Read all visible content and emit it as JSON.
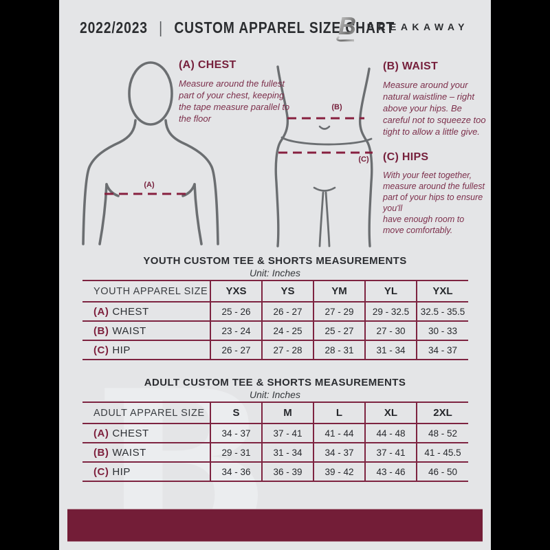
{
  "page": {
    "background": "#000000",
    "flyer_background": "#e4e5e7",
    "accent_maroon": "#731d37",
    "line_maroon": "#7d2340",
    "figure_gray": "#6b6e71"
  },
  "header": {
    "season": "2022/2023",
    "divider": "|",
    "title": "CUSTOM APPAREL SIZE CHART",
    "brand": "BREAKAWAY",
    "logo_icon": "breakaway-b-logo"
  },
  "measure_guide": {
    "chest": {
      "label": "(A) CHEST",
      "text": "Measure around the fullest part of your chest, keeping the tape measure parallel to the floor"
    },
    "waist": {
      "label": "(B) WAIST",
      "text": "Measure around your natural waistline – right above your hips. Be careful not to squeeze too tight to allow a little give."
    },
    "hips": {
      "label": "(C) HIPS",
      "text": "With your feet together, measure around the fullest part of your hips to ensure you'll\nhave enough room to move comfortably."
    },
    "marker_a": "(A)",
    "marker_b": "(B)",
    "marker_c": "(C)"
  },
  "youth_section": {
    "title": "YOUTH CUSTOM TEE & SHORTS MEASUREMENTS",
    "unit": "Unit: Inches",
    "table": {
      "header": [
        "YOUTH APPAREL SIZE",
        "YXS",
        "YS",
        "YM",
        "YL",
        "YXL"
      ],
      "rows": [
        {
          "prefix": "(A)",
          "label": "CHEST",
          "values": [
            "25 - 26",
            "26 - 27",
            "27 - 29",
            "29 - 32.5",
            "32.5 - 35.5"
          ]
        },
        {
          "prefix": "(B)",
          "label": "WAIST",
          "values": [
            "23 - 24",
            "24 - 25",
            "25 - 27",
            "27 - 30",
            "30 - 33"
          ]
        },
        {
          "prefix": "(C)",
          "label": "HIP",
          "values": [
            "26 - 27",
            "27 - 28",
            "28 - 31",
            "31 - 34",
            "34 - 37"
          ]
        }
      ]
    }
  },
  "adult_section": {
    "title": "ADULT CUSTOM TEE & SHORTS MEASUREMENTS",
    "unit": "Unit: Inches",
    "table": {
      "header": [
        "ADULT APPAREL SIZE",
        "S",
        "M",
        "L",
        "XL",
        "2XL"
      ],
      "rows": [
        {
          "prefix": "(A)",
          "label": "CHEST",
          "values": [
            "34 - 37",
            "37 - 41",
            "41 - 44",
            "44 - 48",
            "48 - 52"
          ]
        },
        {
          "prefix": "(B)",
          "label": "WAIST",
          "values": [
            "29 - 31",
            "31 - 34",
            "34 - 37",
            "37 - 41",
            "41 - 45.5"
          ]
        },
        {
          "prefix": "(C)",
          "label": "HIP",
          "values": [
            "34 - 36",
            "36 - 39",
            "39 - 42",
            "43 - 46",
            "46 - 50"
          ]
        }
      ]
    }
  },
  "watermark": {
    "glyph": "B",
    "icon": "breakaway-b-watermark"
  }
}
